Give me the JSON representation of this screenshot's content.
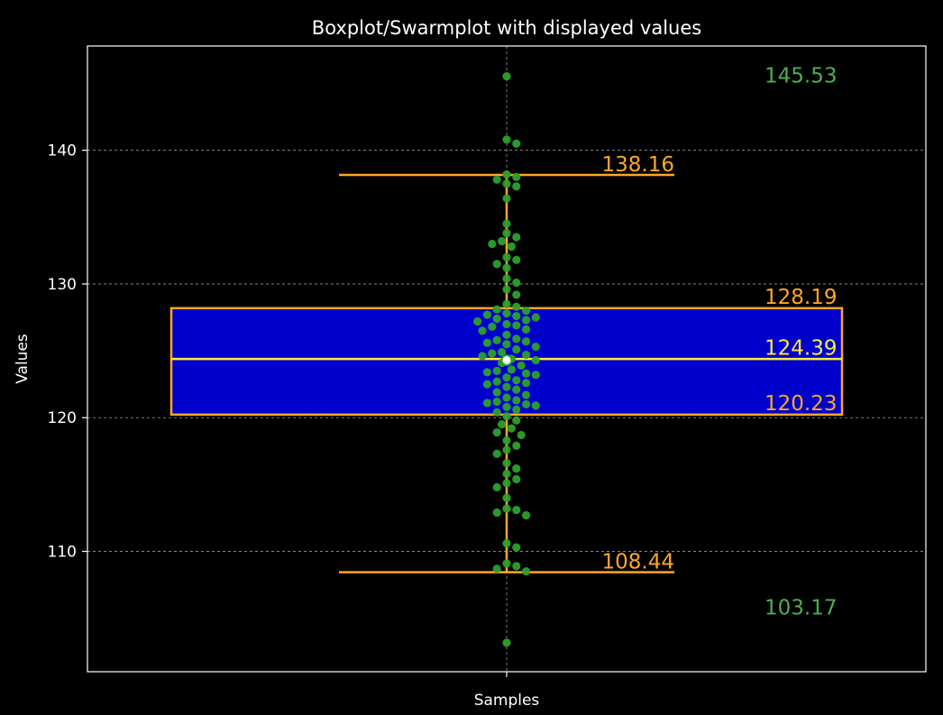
{
  "chart_data": {
    "type": "boxplot-swarm",
    "title": "Boxplot/Swarmplot with displayed values",
    "xlabel": "Samples",
    "ylabel": "Values",
    "ylim": [
      101,
      147.8
    ],
    "yticks": [
      110,
      120,
      130,
      140
    ],
    "grid": true,
    "colors": {
      "background": "#000000",
      "axes": "#ffffff",
      "grid": "#9a9a9a",
      "box_fill": "#0000cd",
      "box_edge": "#ffa726",
      "whisker": "#ffa726",
      "median": "#ffeb3b",
      "points": "#2ca02c",
      "mean": "#ffffff",
      "extreme_label": "#4caf50",
      "quartile_label": "#ffa726",
      "median_label": "#ffeb3b"
    },
    "box": {
      "q1": 120.23,
      "median": 124.39,
      "q3": 128.19,
      "whisker_low": 108.44,
      "whisker_high": 138.16,
      "mean": 124.3
    },
    "labels": {
      "max": "145.53",
      "whisker_high": "138.16",
      "q3": "128.19",
      "median": "124.39",
      "q1": "120.23",
      "whisker_low": "108.44",
      "min": "103.17"
    },
    "points": [
      145.53,
      140.8,
      140.5,
      138.2,
      138.0,
      137.8,
      137.5,
      137.3,
      136.4,
      134.5,
      133.8,
      133.5,
      133.2,
      133.0,
      132.8,
      132.0,
      131.8,
      131.5,
      131.2,
      130.4,
      130.1,
      129.6,
      129.2,
      128.5,
      128.3,
      128.1,
      128.0,
      127.8,
      127.7,
      127.6,
      127.5,
      127.4,
      127.3,
      127.2,
      127.0,
      126.9,
      126.8,
      126.6,
      126.5,
      126.2,
      125.9,
      125.8,
      125.7,
      125.6,
      125.5,
      125.3,
      125.1,
      124.9,
      124.8,
      124.7,
      124.6,
      124.4,
      124.3,
      124.1,
      123.9,
      123.6,
      123.5,
      123.4,
      123.3,
      123.2,
      123.0,
      122.8,
      122.7,
      122.6,
      122.5,
      122.3,
      122.1,
      121.9,
      121.7,
      121.5,
      121.3,
      121.2,
      121.1,
      121.0,
      120.9,
      120.8,
      120.6,
      120.4,
      120.1,
      119.8,
      119.5,
      119.2,
      118.9,
      118.7,
      118.3,
      117.9,
      117.6,
      117.3,
      116.6,
      116.2,
      115.8,
      115.4,
      115.1,
      114.8,
      114.0,
      113.2,
      113.1,
      112.9,
      112.7,
      110.6,
      110.3,
      109.1,
      108.9,
      108.7,
      108.5,
      103.17
    ]
  }
}
